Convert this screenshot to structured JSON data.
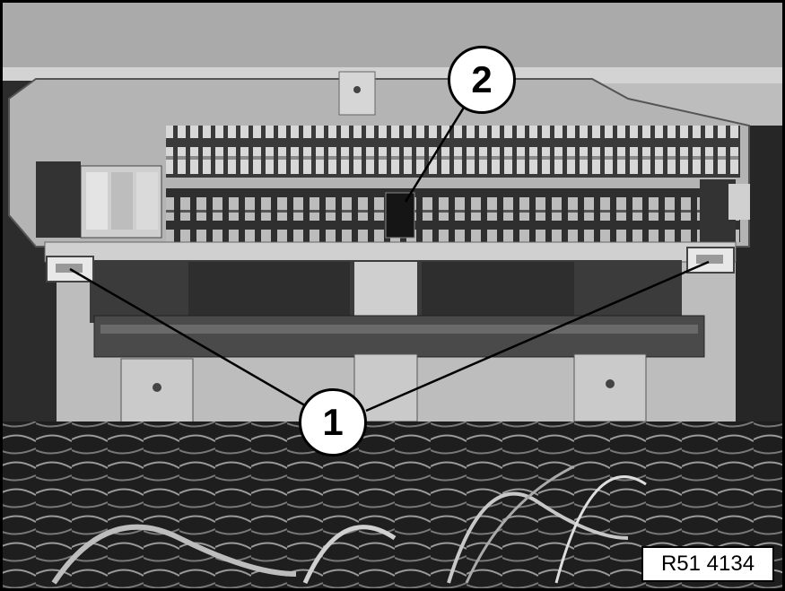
{
  "figure": {
    "callouts": [
      {
        "label": "1"
      },
      {
        "label": "2"
      }
    ],
    "reference_code": "R51 4134"
  },
  "colors": {
    "border": "#000000",
    "background": "#ffffff",
    "metal": "#c9c9c9",
    "dark": "#2a2a2a"
  }
}
